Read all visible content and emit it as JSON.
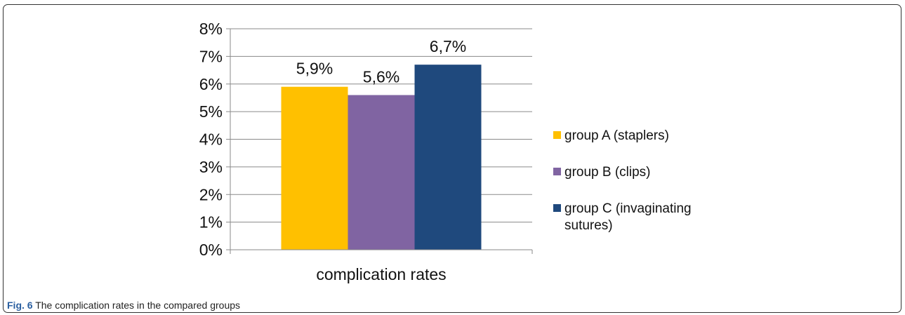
{
  "figure": {
    "caption_label": "Fig. 6",
    "caption_text": "The complication rates in the compared groups"
  },
  "chart_data": {
    "type": "bar",
    "categories": [
      "complication rates"
    ],
    "series": [
      {
        "name": "group A (staplers)",
        "values": [
          5.9
        ],
        "label": "5,9%",
        "color": "#FFC000"
      },
      {
        "name": "group B (clips)",
        "values": [
          5.6
        ],
        "label": "5,6%",
        "color": "#8064A2"
      },
      {
        "name": "group C (invaginating sutures)",
        "values": [
          6.7
        ],
        "label": "6,7%",
        "color": "#1F497D"
      }
    ],
    "ylim": [
      0,
      8
    ],
    "yticks": [
      "0%",
      "1%",
      "2%",
      "3%",
      "4%",
      "5%",
      "6%",
      "7%",
      "8%"
    ],
    "grid": true,
    "legend_position": "right",
    "xlabel": "",
    "ylabel": "",
    "title": ""
  }
}
